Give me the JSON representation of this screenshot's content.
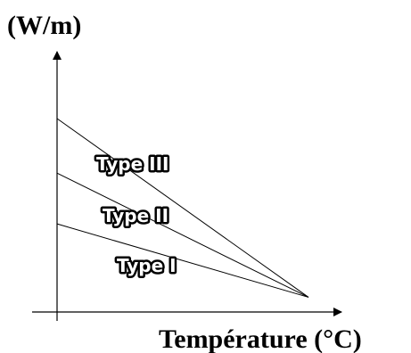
{
  "chart_data": {
    "type": "line",
    "title": "",
    "ylabel": "(W/m)",
    "xlabel": "Température (°C)",
    "grid": false,
    "legend": "inline labels on lines",
    "series": [
      {
        "name": "Type III",
        "x": [
          0,
          1
        ],
        "y": [
          1.0,
          0.05
        ]
      },
      {
        "name": "Type II",
        "x": [
          0,
          1
        ],
        "y": [
          0.71,
          0.05
        ]
      },
      {
        "name": "Type I",
        "x": [
          0,
          1
        ],
        "y": [
          0.44,
          0.05
        ]
      }
    ],
    "xlim": [
      0,
      1
    ],
    "ylim": [
      0,
      1
    ],
    "colors": {
      "line": "#000000",
      "axis": "#000000",
      "label_fill": "#ffffff"
    }
  }
}
